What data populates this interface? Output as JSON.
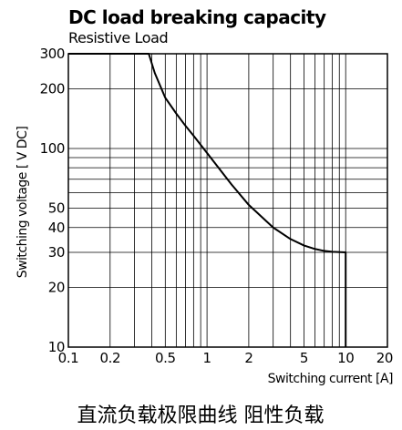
{
  "chart_data": {
    "type": "line",
    "title": "DC load breaking capacity",
    "subtitle": "Resistive Load",
    "xlabel": "Switching current [A]",
    "ylabel": "Switching voltage [ V DC]",
    "x_scale": "log",
    "y_scale": "log",
    "xlim": [
      0.1,
      20
    ],
    "ylim": [
      10,
      300
    ],
    "x_ticks": [
      0.1,
      0.2,
      0.5,
      1,
      2,
      5,
      10,
      20
    ],
    "x_tick_labels": [
      "0.1",
      "0.2",
      "0.5",
      "1",
      "2",
      "5",
      "10",
      "20"
    ],
    "y_ticks": [
      10,
      20,
      30,
      40,
      50,
      100,
      200,
      300
    ],
    "y_tick_labels": [
      "10",
      "20",
      "30",
      "40",
      "50",
      "100",
      "200",
      "300"
    ],
    "grid": true,
    "series": [
      {
        "x": [
          0.1,
          0.38,
          0.42,
          0.5,
          0.6,
          0.7,
          0.8,
          1.0,
          1.5,
          2.0,
          3.0,
          4.0,
          5.0,
          6.0,
          7.0,
          8.0,
          10.0,
          10.0
        ],
        "y": [
          300,
          300,
          240,
          180,
          150,
          130,
          116,
          95,
          66,
          52,
          40,
          35,
          32.5,
          31.2,
          30.5,
          30.2,
          30,
          10
        ]
      }
    ],
    "line_color": "#000000"
  },
  "caption": "直流负载极限曲线 阻性负载"
}
